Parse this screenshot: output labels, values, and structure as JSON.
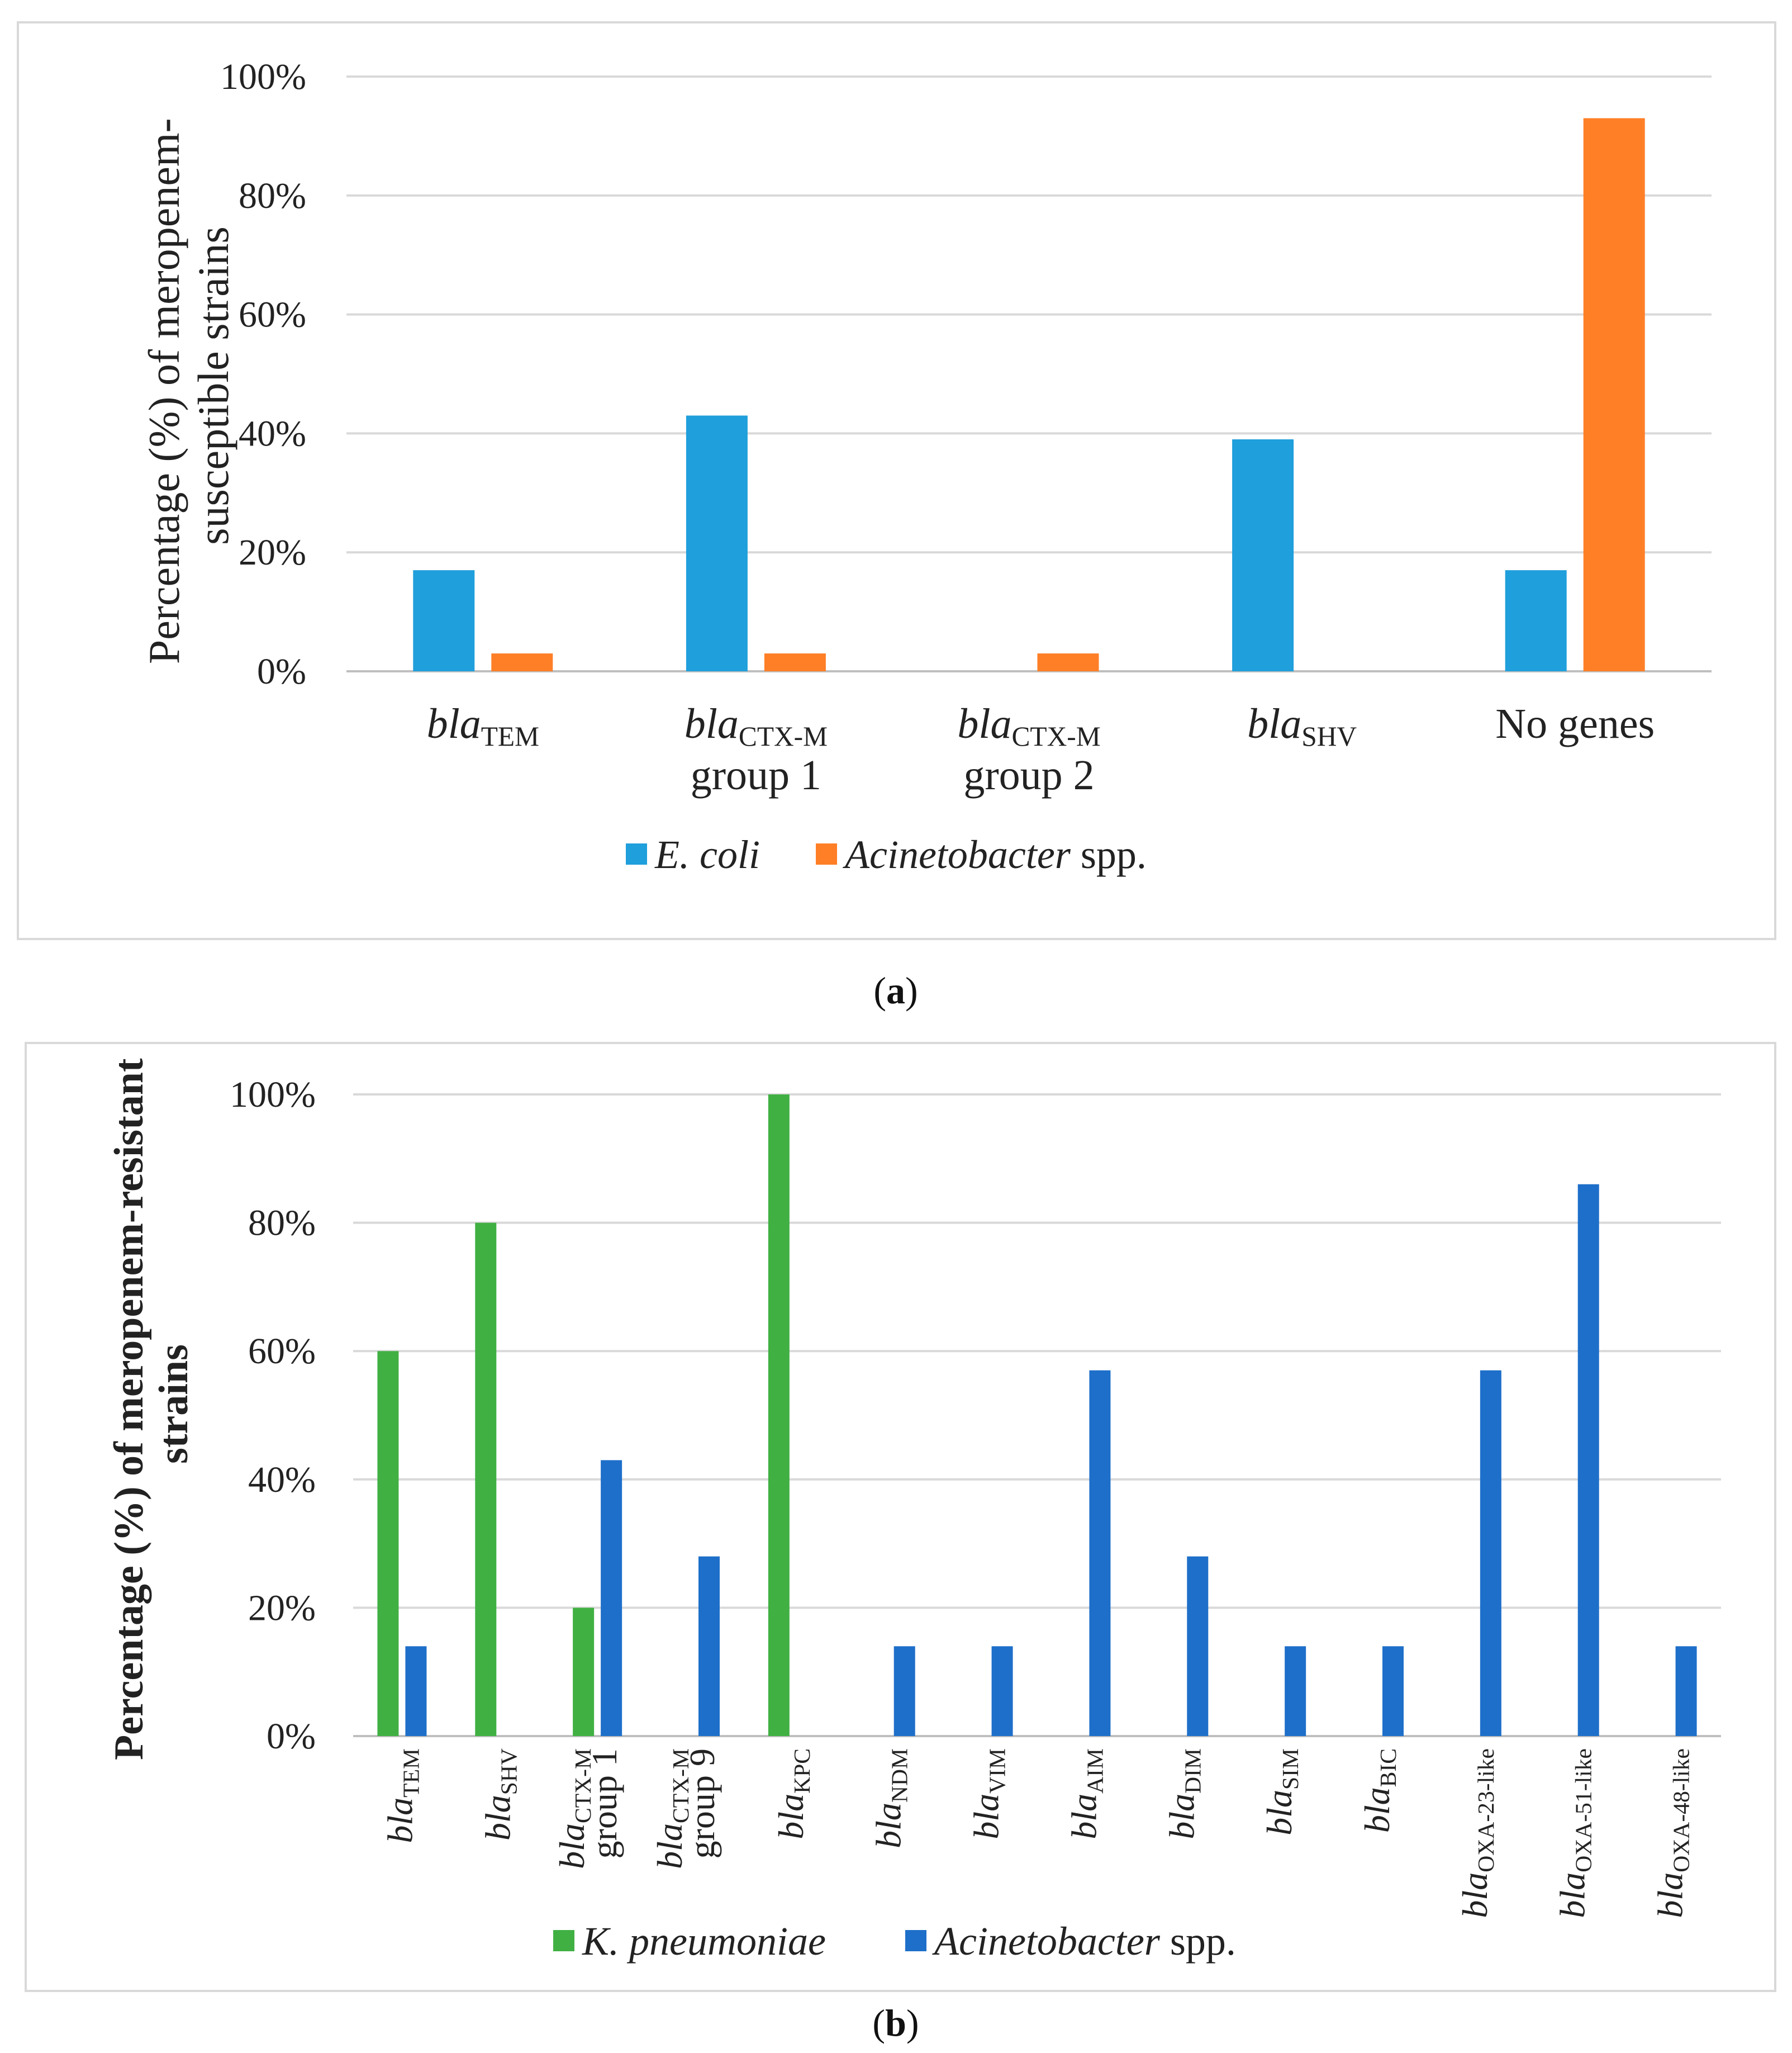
{
  "colors": {
    "ecoli": "#1f9fdb",
    "acineto_a": "#ff7f27",
    "kpneu": "#40b043",
    "acineto_b": "#1e6fc9"
  },
  "chart_data": [
    {
      "type": "bar",
      "panel": "a",
      "caption": "a",
      "ylabel": [
        "Percentage (%) of meropenem-",
        "susceptible strains"
      ],
      "yticks": [
        "0%",
        "20%",
        "40%",
        "60%",
        "80%",
        "100%"
      ],
      "ylim": [
        0,
        100
      ],
      "grid": true,
      "legend_position": "bottom",
      "categories": [
        {
          "base": "bla",
          "sub": "TEM",
          "line2": ""
        },
        {
          "base": "bla",
          "sub": "CTX-M",
          "line2": "group 1"
        },
        {
          "base": "bla",
          "sub": "CTX-M",
          "line2": "group 2"
        },
        {
          "base": "bla",
          "sub": "SHV",
          "line2": ""
        },
        {
          "base": "",
          "sub": "",
          "line2": "",
          "plain": "No genes"
        }
      ],
      "series": [
        {
          "name_italic": "E. coli",
          "name_rest": "",
          "color_key": "ecoli",
          "values": [
            17,
            43,
            0,
            39,
            17
          ]
        },
        {
          "name_italic": "Acinetobacter",
          "name_rest": " spp.",
          "color_key": "acineto_a",
          "values": [
            3,
            3,
            3,
            0,
            93
          ]
        }
      ]
    },
    {
      "type": "bar",
      "panel": "b",
      "caption": "b",
      "ylabel": [
        "Percentage (%) of meropenem-resistant",
        "strains"
      ],
      "yticks": [
        "0%",
        "20%",
        "40%",
        "60%",
        "80%",
        "100%"
      ],
      "ylim": [
        0,
        100
      ],
      "grid": true,
      "legend_position": "bottom",
      "categories": [
        {
          "base": "bla",
          "sub": "TEM",
          "line2": ""
        },
        {
          "base": "bla",
          "sub": "SHV",
          "line2": ""
        },
        {
          "base": "bla",
          "sub": "CTX-M",
          "line2": "group 1"
        },
        {
          "base": "bla",
          "sub": "CTX-M",
          "line2": "group 9"
        },
        {
          "base": "bla",
          "sub": "KPC",
          "line2": ""
        },
        {
          "base": "bla",
          "sub": "NDM",
          "line2": ""
        },
        {
          "base": "bla",
          "sub": "VIM",
          "line2": ""
        },
        {
          "base": "bla",
          "sub": "AIM",
          "line2": ""
        },
        {
          "base": "bla",
          "sub": "DIM",
          "line2": ""
        },
        {
          "base": "bla",
          "sub": "SIM",
          "line2": ""
        },
        {
          "base": "bla",
          "sub": "BIC",
          "line2": ""
        },
        {
          "base": "bla",
          "sub": "OXA-23-like",
          "line2": ""
        },
        {
          "base": "bla",
          "sub": "OXA-51-like",
          "line2": ""
        },
        {
          "base": "bla",
          "sub": "OXA-48-like",
          "line2": ""
        }
      ],
      "series": [
        {
          "name_italic": "K. pneumoniae",
          "name_rest": "",
          "color_key": "kpneu",
          "values": [
            60,
            80,
            20,
            0,
            100,
            0,
            0,
            0,
            0,
            0,
            0,
            0,
            0,
            0
          ]
        },
        {
          "name_italic": "Acinetobacter",
          "name_rest": " spp.",
          "color_key": "acineto_b",
          "values": [
            14,
            0,
            43,
            28,
            0,
            14,
            14,
            57,
            28,
            14,
            14,
            57,
            86,
            14
          ]
        }
      ]
    }
  ]
}
